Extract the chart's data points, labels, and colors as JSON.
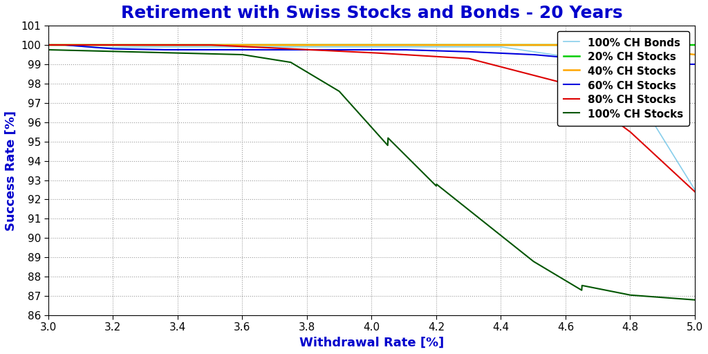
{
  "title": "Retirement with Swiss Stocks and Bonds - 20 Years",
  "xlabel": "Withdrawal Rate [%]",
  "ylabel": "Success Rate [%]",
  "xlim": [
    3.0,
    5.0
  ],
  "ylim": [
    86,
    101
  ],
  "yticks": [
    86,
    87,
    88,
    89,
    90,
    91,
    92,
    93,
    94,
    95,
    96,
    97,
    98,
    99,
    100,
    101
  ],
  "xticks": [
    3.0,
    3.2,
    3.4,
    3.6,
    3.8,
    4.0,
    4.2,
    4.4,
    4.6,
    4.8,
    5.0
  ],
  "background_color": "#ffffff",
  "title_color": "#0000CC",
  "xlabel_color": "#0000CC",
  "ylabel_color": "#0000CC",
  "title_fontsize": 18,
  "label_fontsize": 13,
  "tick_fontsize": 11,
  "legend_fontsize": 11,
  "series": [
    {
      "label": "100% CH Bonds",
      "color": "#87CEEB",
      "linewidth": 1.2
    },
    {
      "label": "20% CH Stocks",
      "color": "#00CC00",
      "linewidth": 1.8
    },
    {
      "label": "40% CH Stocks",
      "color": "#FFA500",
      "linewidth": 1.8
    },
    {
      "label": "60% CH Stocks",
      "color": "#0000DD",
      "linewidth": 1.5
    },
    {
      "label": "80% CH Stocks",
      "color": "#DD0000",
      "linewidth": 1.5
    },
    {
      "label": "100% CH Stocks",
      "color": "#005500",
      "linewidth": 1.5
    }
  ]
}
